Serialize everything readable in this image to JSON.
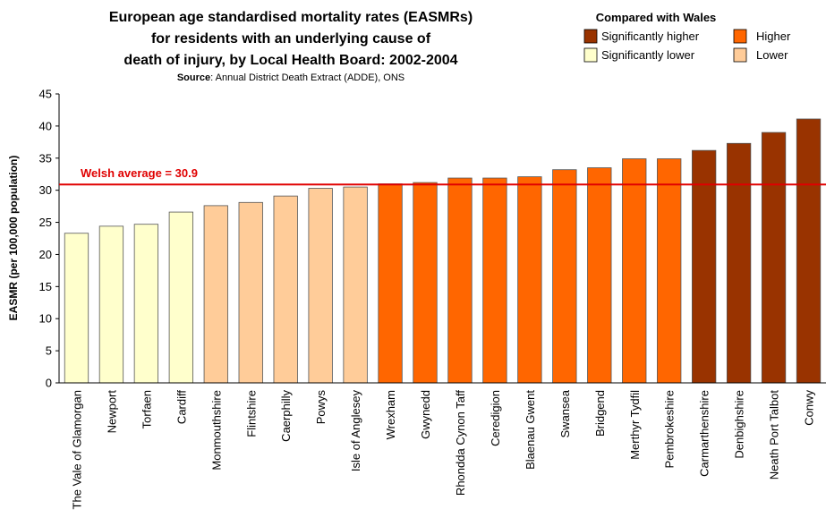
{
  "chart_data": {
    "type": "bar",
    "title": [
      "European age standardised mortality rates (EASMRs)",
      "for residents with an underlying cause of",
      "death of injury, by Local Health Board: 2002-2004"
    ],
    "source": {
      "label": "Source",
      "text": ": Annual District Death Extract (ADDE), ONS"
    },
    "y_label": "EASMR (per 100,000 population)",
    "categories": [
      "The Vale of Glamorgan",
      "Newport",
      "Torfaen",
      "Cardiff",
      "Monmouthshire",
      "Flintshire",
      "Caerphilly",
      "Powys",
      "Isle of Anglesey",
      "Wrexham",
      "Gwynedd",
      "Rhondda Cynon Taff",
      "Ceredigion",
      "Blaenau Gwent",
      "Swansea",
      "Bridgend",
      "Merthyr Tydfil",
      "Pembrokeshire",
      "Carmarthenshire",
      "Denbighshire",
      "Neath Port Talbot",
      "Conwy"
    ],
    "values": [
      23.3,
      24.4,
      24.7,
      26.6,
      27.6,
      28.1,
      29.1,
      30.3,
      30.5,
      31.0,
      31.2,
      31.9,
      31.9,
      32.1,
      33.2,
      33.5,
      34.9,
      34.9,
      36.2,
      37.3,
      39.0,
      41.1
    ],
    "colors": [
      "#ffffcc",
      "#ffffcc",
      "#ffffcc",
      "#ffffcc",
      "#ffcc99",
      "#ffcc99",
      "#ffcc99",
      "#ffcc99",
      "#ffcc99",
      "#ff6600",
      "#ff6600",
      "#ff6600",
      "#ff6600",
      "#ff6600",
      "#ff6600",
      "#ff6600",
      "#ff6600",
      "#ff6600",
      "#993300",
      "#993300",
      "#993300",
      "#993300"
    ],
    "legend_title": "Compared with Wales",
    "legend": [
      {
        "name": "Significantly higher",
        "color": "#993300"
      },
      {
        "name": "Higher",
        "color": "#ff6600"
      },
      {
        "name": "Significantly lower",
        "color": "#ffffcc"
      },
      {
        "name": "Lower",
        "color": "#ffcc99"
      }
    ],
    "reference_line": {
      "value": 30.9,
      "label": "Welsh average = 30.9",
      "color": "#e00000"
    },
    "ylim": [
      0,
      45
    ],
    "yticks": [
      0,
      5,
      10,
      15,
      20,
      25,
      30,
      35,
      40,
      45
    ],
    "grid": false
  }
}
